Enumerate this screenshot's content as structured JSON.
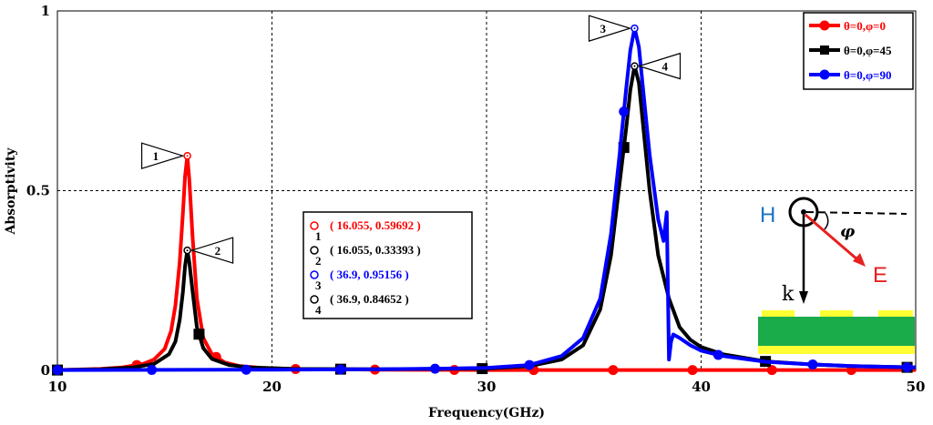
{
  "chart_data": {
    "type": "line",
    "title": "",
    "xlabel": "Frequency(GHz)",
    "ylabel": "Absorptivity",
    "xlim": [
      10,
      50
    ],
    "ylim": [
      0,
      1
    ],
    "x_ticks": [
      "10",
      "20",
      "30",
      "40",
      "50"
    ],
    "y_ticks": [
      "0",
      "0.5",
      "1"
    ],
    "grid": true,
    "legend_position": "top-right",
    "series": [
      {
        "name": "θ=0,φ=0",
        "color": "#ff0000",
        "marker": "circle",
        "x": [
          10,
          12,
          13,
          14,
          14.5,
          15,
          15.3,
          15.5,
          15.7,
          15.85,
          15.95,
          16.055,
          16.15,
          16.3,
          16.5,
          16.8,
          17.2,
          17.8,
          18.5,
          19.5,
          21,
          25,
          30,
          35,
          40,
          45,
          50
        ],
        "values": [
          0.001,
          0.004,
          0.008,
          0.018,
          0.03,
          0.06,
          0.11,
          0.18,
          0.3,
          0.44,
          0.54,
          0.597,
          0.53,
          0.37,
          0.2,
          0.09,
          0.045,
          0.022,
          0.012,
          0.007,
          0.004,
          0.002,
          0.001,
          0.001,
          0.001,
          0.001,
          0.001
        ]
      },
      {
        "name": "θ=0,φ=45",
        "color": "#000000",
        "marker": "square",
        "x": [
          10,
          12,
          13.5,
          14.5,
          15.2,
          15.5,
          15.7,
          15.85,
          15.95,
          16.055,
          16.15,
          16.3,
          16.5,
          16.8,
          17.2,
          18,
          19,
          21,
          25,
          30,
          32,
          33.5,
          34.5,
          35.3,
          35.8,
          36.2,
          36.5,
          36.7,
          36.9,
          37.1,
          37.3,
          37.6,
          38,
          38.5,
          39,
          39.5,
          40,
          41,
          43,
          45,
          47,
          50
        ],
        "values": [
          0.001,
          0.003,
          0.008,
          0.018,
          0.045,
          0.08,
          0.14,
          0.22,
          0.29,
          0.334,
          0.3,
          0.22,
          0.12,
          0.062,
          0.032,
          0.015,
          0.008,
          0.004,
          0.003,
          0.005,
          0.012,
          0.03,
          0.07,
          0.17,
          0.32,
          0.52,
          0.67,
          0.78,
          0.847,
          0.8,
          0.68,
          0.5,
          0.32,
          0.2,
          0.12,
          0.085,
          0.065,
          0.045,
          0.025,
          0.017,
          0.012,
          0.008
        ]
      },
      {
        "name": "θ=0,φ=90",
        "color": "#0000ff",
        "marker": "circle",
        "x": [
          10,
          20,
          25,
          28,
          30,
          32,
          33.5,
          34.5,
          35.3,
          35.8,
          36.2,
          36.5,
          36.7,
          36.9,
          37.1,
          37.3,
          37.6,
          38,
          38.25,
          38.4,
          38.5,
          38.6,
          38.7,
          39,
          39.5,
          40,
          41,
          43,
          45,
          47,
          50
        ],
        "values": [
          0.001,
          0.002,
          0.003,
          0.005,
          0.007,
          0.015,
          0.04,
          0.09,
          0.2,
          0.38,
          0.6,
          0.78,
          0.89,
          0.952,
          0.9,
          0.78,
          0.6,
          0.42,
          0.36,
          0.44,
          0.03,
          0.08,
          0.1,
          0.09,
          0.07,
          0.055,
          0.04,
          0.024,
          0.017,
          0.012,
          0.008
        ]
      }
    ],
    "markers": [
      {
        "id": "1",
        "x": 16.055,
        "y": 0.59692,
        "label": "( 16.055, 0.59692 )",
        "color": "#ff0000"
      },
      {
        "id": "2",
        "x": 16.055,
        "y": 0.33393,
        "label": "( 16.055, 0.33393 )",
        "color": "#000000"
      },
      {
        "id": "3",
        "x": 36.9,
        "y": 0.95156,
        "label": "( 36.9, 0.95156 )",
        "color": "#0000ff"
      },
      {
        "id": "4",
        "x": 36.9,
        "y": 0.84652,
        "label": "( 36.9, 0.84652 )",
        "color": "#000000"
      }
    ],
    "inset": {
      "h_label": "H",
      "e_label": "E",
      "k_label": "k",
      "phi_label": "φ"
    }
  }
}
